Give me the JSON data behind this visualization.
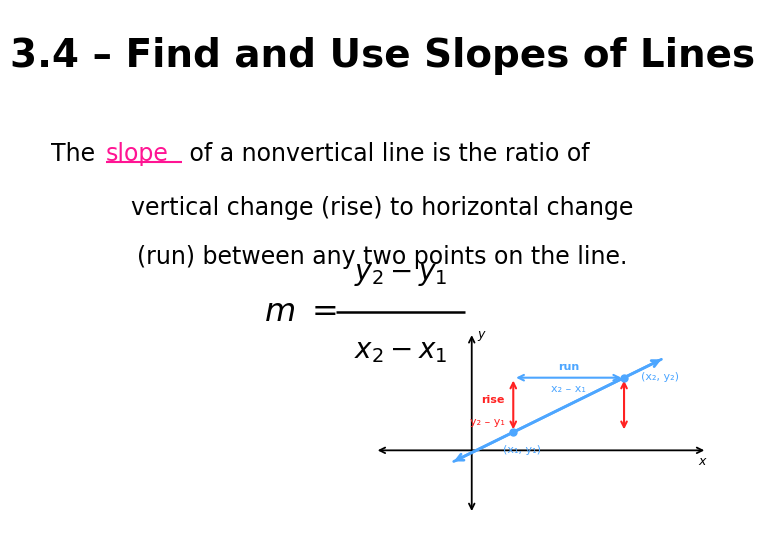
{
  "title": "3.4 – Find and Use Slopes of Lines",
  "title_fontsize": 28,
  "background_color": "#ffffff",
  "slope_color": "#ff1493",
  "body_fontsize": 17,
  "formula_fontsize": 20,
  "line_color": "#4da6ff",
  "rise_color": "#ff2222",
  "run_color": "#4da6ff",
  "point_color": "#1a6fcc",
  "axis_color": "#000000",
  "body_line1_pre": "The ",
  "body_slope_word": "slope",
  "body_line1_post": " of a nonvertical line is the ratio of",
  "body_line2": "vertical change (rise) to horizontal change",
  "body_line3": "(run) between any two points on the line.",
  "rise_label_bold": "rise",
  "rise_label_sub": "y₂ – y₁",
  "run_label_bold": "run",
  "run_label_sub": "x₂ – x₁",
  "point1_label": "(x₁, y₁)",
  "point2_label": "(x₂, y₂)"
}
